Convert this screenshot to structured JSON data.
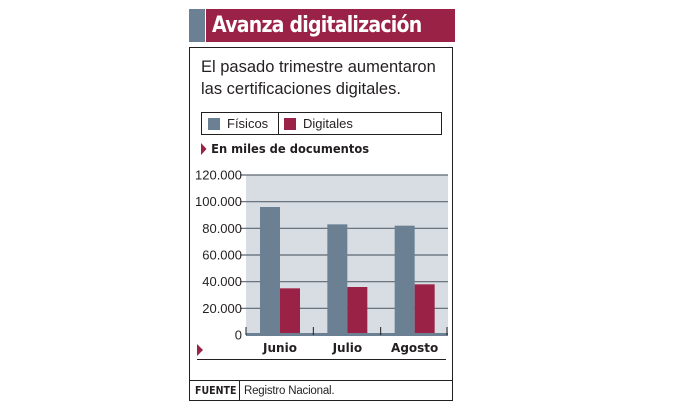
{
  "header": {
    "title": "Avanza digitalización"
  },
  "subtitle": "El pasado trimestre aumentaron las certificaciones digitales.",
  "units_label": "En miles de documentos",
  "source": {
    "label": "FUENTE",
    "text": "Registro Nacional."
  },
  "colors": {
    "fisicos": "#6b8193",
    "digitales": "#9b2247",
    "plot_bg": "#d8dde3",
    "grid": "#5c6670",
    "accent": "#9b2247"
  },
  "chart_data": {
    "type": "bar",
    "title": "Avanza digitalización",
    "subtitle": "El pasado trimestre aumentaron las certificaciones digitales.",
    "ylabel": "En miles de documentos",
    "xlabel": "",
    "categories": [
      "Junio",
      "Julio",
      "Agosto"
    ],
    "series": [
      {
        "name": "Físicos",
        "values": [
          96000,
          83000,
          82000
        ]
      },
      {
        "name": "Digitales",
        "values": [
          35000,
          36000,
          38000
        ]
      }
    ],
    "ylim": [
      0,
      120000
    ],
    "yticks": [
      0,
      20000,
      40000,
      60000,
      80000,
      100000,
      120000
    ],
    "ytick_labels": [
      "0",
      "20.000",
      "40.000",
      "60.000",
      "80.000",
      "100.000",
      "120.000"
    ],
    "grid": true,
    "legend": "top"
  }
}
